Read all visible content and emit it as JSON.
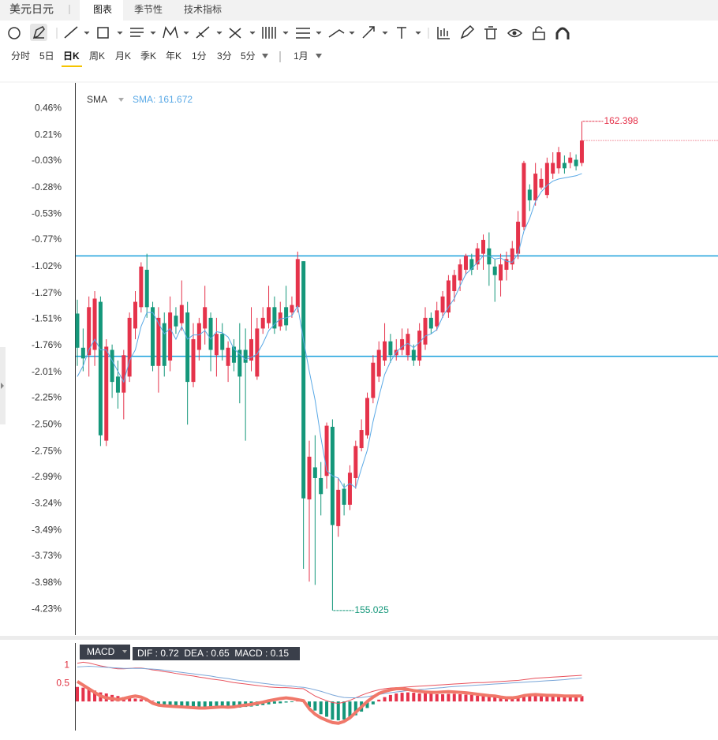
{
  "header": {
    "symbol": "美元日元",
    "tabs": [
      "图表",
      "季节性",
      "技术指标"
    ],
    "active_tab": 0
  },
  "periods": [
    "分时",
    "5日",
    "日K",
    "周K",
    "月K",
    "季K",
    "年K",
    "1分",
    "3分",
    "5分"
  ],
  "active_period": 2,
  "range": "1月",
  "chart_data": [
    {
      "type": "candlestick",
      "indicator": "SMA",
      "indicator_label": "SMA: 161.672",
      "up_color": "#e5334b",
      "down_color": "#14977a",
      "open": [
        -1.46,
        -1.78,
        -1.85,
        -1.8,
        -1.35,
        -2.65,
        -1.8,
        -2.05,
        -2.2,
        -2.05,
        -1.6,
        -1.4,
        -1.05,
        -1.4,
        -1.95,
        -1.55,
        -1.9,
        -1.48,
        -1.55,
        -1.45,
        -2.1,
        -1.8,
        -1.6,
        -1.5,
        -1.85,
        -1.65,
        -1.95,
        -1.77,
        -1.8,
        -1.8,
        -1.9,
        -2.05,
        -1.6,
        -1.55,
        -1.4,
        -1.58,
        -1.4,
        -1.45,
        -1.4,
        -0.97,
        -3.2,
        -2.9,
        -3.0,
        -2.98,
        -2.52,
        -3.45,
        -3.1,
        -3.25,
        -3.0,
        -2.72,
        -2.6,
        -2.25,
        -2.05,
        -1.9,
        -1.72,
        -1.85,
        -1.8,
        -1.85,
        -1.8,
        -1.9,
        -1.75,
        -1.5,
        -1.58,
        -1.45,
        -1.45,
        -1.25,
        -1.15,
        -1.05,
        -0.95,
        -1.0,
        -0.9,
        -0.85,
        -1.02,
        -1.15,
        -1.05,
        -1.0,
        -0.9,
        -0.65,
        -0.3,
        -0.4,
        -0.28,
        -0.35,
        -0.15,
        -0.1,
        -0.05,
        -0.05,
        -0.02,
        -0.05
      ],
      "high": [
        -1.33,
        -1.6,
        -1.3,
        -1.25,
        -1.3,
        -1.7,
        -1.75,
        -1.9,
        -1.8,
        -1.45,
        -1.25,
        -0.98,
        -0.9,
        -1.35,
        -1.4,
        -1.45,
        -1.3,
        -1.4,
        -1.15,
        -1.35,
        -1.55,
        -1.5,
        -1.2,
        -1.45,
        -1.5,
        -1.55,
        -1.72,
        -1.7,
        -1.55,
        -1.6,
        -1.4,
        -1.5,
        -1.4,
        -1.2,
        -1.3,
        -1.35,
        -1.2,
        -1.3,
        -0.88,
        -0.97,
        -2.65,
        -2.6,
        -2.85,
        -2.48,
        -2.45,
        -3.0,
        -3.05,
        -2.88,
        -2.65,
        -2.45,
        -2.2,
        -1.85,
        -1.72,
        -1.55,
        -1.65,
        -1.7,
        -1.6,
        -1.6,
        -1.75,
        -1.55,
        -1.4,
        -1.45,
        -1.35,
        -1.25,
        -1.1,
        -1.05,
        -0.95,
        -0.9,
        -0.9,
        -0.8,
        -0.72,
        -0.7,
        -0.95,
        -0.9,
        -0.88,
        -0.78,
        -0.5,
        -0.03,
        -0.25,
        -0.05,
        -0.1,
        0.0,
        0.05,
        0.1,
        0.02,
        0.05,
        0.03,
        0.34
      ],
      "low": [
        -1.95,
        -2.0,
        -2.05,
        -1.95,
        -2.7,
        -2.7,
        -2.25,
        -2.35,
        -2.45,
        -2.1,
        -1.7,
        -1.45,
        -1.5,
        -2.0,
        -2.2,
        -2.05,
        -2.0,
        -1.65,
        -1.62,
        -2.5,
        -2.15,
        -1.9,
        -1.75,
        -2.0,
        -2.05,
        -1.9,
        -2.1,
        -2.0,
        -2.3,
        -2.65,
        -2.0,
        -2.08,
        -1.65,
        -1.6,
        -1.65,
        -1.62,
        -1.62,
        -1.5,
        -1.45,
        -3.85,
        -3.97,
        -4.0,
        -3.35,
        -3.1,
        -4.24,
        -3.55,
        -3.35,
        -3.3,
        -3.1,
        -2.75,
        -2.63,
        -2.3,
        -2.1,
        -1.95,
        -1.92,
        -1.9,
        -1.85,
        -1.9,
        -1.95,
        -1.95,
        -1.8,
        -1.65,
        -1.62,
        -1.5,
        -1.5,
        -1.35,
        -1.25,
        -1.1,
        -1.1,
        -1.05,
        -1.05,
        -1.2,
        -1.35,
        -1.3,
        -1.15,
        -1.05,
        -0.95,
        -0.68,
        -0.5,
        -0.45,
        -0.3,
        -0.38,
        -0.2,
        -0.15,
        -0.15,
        -0.1,
        -0.12,
        -0.08
      ],
      "close": [
        -1.78,
        -1.88,
        -1.4,
        -1.32,
        -2.6,
        -1.77,
        -2.1,
        -2.2,
        -1.85,
        -1.5,
        -1.35,
        -1.02,
        -1.4,
        -1.95,
        -1.5,
        -1.95,
        -1.45,
        -1.58,
        -1.38,
        -2.1,
        -1.7,
        -1.55,
        -1.4,
        -1.8,
        -1.65,
        -1.8,
        -1.78,
        -1.92,
        -2.05,
        -1.92,
        -1.7,
        -1.6,
        -1.5,
        -1.4,
        -1.6,
        -1.45,
        -1.57,
        -1.38,
        -0.95,
        -3.19,
        -2.8,
        -3.0,
        -3.15,
        -2.51,
        -3.44,
        -3.11,
        -3.25,
        -2.95,
        -2.7,
        -2.55,
        -2.25,
        -1.92,
        -1.8,
        -1.72,
        -1.85,
        -1.8,
        -1.7,
        -1.65,
        -1.9,
        -1.62,
        -1.5,
        -1.6,
        -1.43,
        -1.3,
        -1.15,
        -1.1,
        -1.0,
        -0.92,
        -1.05,
        -0.85,
        -0.77,
        -1.0,
        -1.1,
        -1.0,
        -0.95,
        -0.85,
        -0.6,
        -0.05,
        -0.4,
        -0.15,
        -0.2,
        -0.05,
        -0.05,
        0.05,
        -0.1,
        0.0,
        -0.08,
        0.16
      ],
      "sma": {
        "color": "#5aa9e6",
        "values": [
          -2.05,
          -1.95,
          -1.8,
          -1.7,
          -1.8,
          -1.8,
          -1.9,
          -2.0,
          -2.1,
          -1.9,
          -1.8,
          -1.58,
          -1.45,
          -1.45,
          -1.55,
          -1.65,
          -1.6,
          -1.7,
          -1.58,
          -1.7,
          -1.66,
          -1.66,
          -1.62,
          -1.7,
          -1.63,
          -1.64,
          -1.68,
          -1.79,
          -1.84,
          -1.89,
          -1.87,
          -1.84,
          -1.74,
          -1.62,
          -1.56,
          -1.51,
          -1.5,
          -1.48,
          -1.39,
          -1.71,
          -2.0,
          -2.27,
          -2.62,
          -2.93,
          -2.98,
          -3.0,
          -3.09,
          -3.05,
          -3.09,
          -2.91,
          -2.74,
          -2.47,
          -2.24,
          -2.03,
          -1.91,
          -1.82,
          -1.77,
          -1.74,
          -1.78,
          -1.73,
          -1.67,
          -1.65,
          -1.61,
          -1.49,
          -1.4,
          -1.32,
          -1.2,
          -1.09,
          -1.04,
          -0.98,
          -0.92,
          -0.92,
          -0.95,
          -0.94,
          -0.97,
          -0.98,
          -0.9,
          -0.69,
          -0.57,
          -0.41,
          -0.32,
          -0.26,
          -0.22,
          -0.2,
          -0.19,
          -0.18,
          -0.17,
          -0.15
        ]
      },
      "hlines": {
        "color": "#1aa0dc",
        "values": [
          -0.92,
          -1.86
        ]
      },
      "max_label": "162.398",
      "min_label": "155.025",
      "ylim": [
        -4.47,
        0.7
      ],
      "yticks": [
        {
          "value": 0.46,
          "label": "0.46%"
        },
        {
          "value": 0.21,
          "label": "0.21%"
        },
        {
          "value": -0.03,
          "label": "-0.03%"
        },
        {
          "value": -0.28,
          "label": "-0.28%"
        },
        {
          "value": -0.53,
          "label": "-0.53%"
        },
        {
          "value": -0.77,
          "label": "-0.77%"
        },
        {
          "value": -1.02,
          "label": "-1.02%"
        },
        {
          "value": -1.27,
          "label": "-1.27%"
        },
        {
          "value": -1.51,
          "label": "-1.51%"
        },
        {
          "value": -1.76,
          "label": "-1.76%"
        },
        {
          "value": -2.01,
          "label": "-2.01%"
        },
        {
          "value": -2.25,
          "label": "-2.25%"
        },
        {
          "value": -2.5,
          "label": "-2.50%"
        },
        {
          "value": -2.75,
          "label": "-2.75%"
        },
        {
          "value": -2.99,
          "label": "-2.99%"
        },
        {
          "value": -3.24,
          "label": "-3.24%"
        },
        {
          "value": -3.49,
          "label": "-3.49%"
        },
        {
          "value": -3.73,
          "label": "-3.73%"
        },
        {
          "value": -3.98,
          "label": "-3.98%"
        },
        {
          "value": -4.23,
          "label": "-4.23%"
        }
      ]
    },
    {
      "type": "macd",
      "indicator": "MACD",
      "legend": "DIF : 0.72  DEA : 0.65  MACD : 0.15",
      "up_color": "#e5334b",
      "down_color": "#14977a",
      "histogram": [
        0.4,
        0.38,
        0.36,
        0.3,
        0.25,
        0.22,
        0.18,
        0.15,
        0.12,
        0.1,
        0.08,
        0.06,
        0.04,
        0.02,
        -0.12,
        -0.13,
        -0.14,
        -0.15,
        -0.15,
        -0.16,
        -0.17,
        -0.18,
        -0.18,
        -0.17,
        -0.16,
        -0.17,
        -0.18,
        -0.18,
        -0.17,
        -0.15,
        -0.14,
        -0.12,
        -0.1,
        -0.08,
        -0.06,
        -0.05,
        -0.03,
        -0.02,
        0.05,
        0.03,
        -0.15,
        -0.25,
        -0.35,
        -0.42,
        -0.5,
        -0.52,
        -0.5,
        -0.45,
        -0.38,
        -0.28,
        -0.18,
        -0.08,
        0.05,
        0.12,
        0.18,
        0.22,
        0.24,
        0.25,
        0.24,
        0.22,
        0.22,
        0.21,
        0.2,
        0.2,
        0.21,
        0.21,
        0.2,
        0.19,
        0.18,
        0.16,
        0.15,
        0.13,
        0.12,
        0.1,
        0.09,
        0.1,
        0.12,
        0.15,
        0.16,
        0.17,
        0.16,
        0.15,
        0.16,
        0.15,
        0.14,
        0.15,
        0.15,
        0.15
      ],
      "series": [
        {
          "color": "#e8505b",
          "width": 1,
          "values": [
            1.05,
            1.08,
            1.06,
            1.02,
            0.98,
            0.95,
            0.92,
            0.9,
            0.9,
            0.91,
            0.92,
            0.92,
            0.9,
            0.87,
            0.85,
            0.82,
            0.8,
            0.77,
            0.75,
            0.72,
            0.7,
            0.67,
            0.65,
            0.62,
            0.6,
            0.58,
            0.55,
            0.52,
            0.5,
            0.48,
            0.46,
            0.44,
            0.42,
            0.4,
            0.39,
            0.38,
            0.38,
            0.37,
            0.36,
            0.35,
            0.25,
            0.15,
            0.08,
            0.02,
            -0.03,
            -0.05,
            -0.02,
            0.03,
            0.1,
            0.17,
            0.23,
            0.28,
            0.32,
            0.35,
            0.37,
            0.38,
            0.39,
            0.4,
            0.41,
            0.42,
            0.43,
            0.44,
            0.45,
            0.46,
            0.47,
            0.48,
            0.49,
            0.5,
            0.51,
            0.52,
            0.52,
            0.53,
            0.54,
            0.55,
            0.56,
            0.57,
            0.58,
            0.6,
            0.62,
            0.64,
            0.65,
            0.66,
            0.67,
            0.68,
            0.69,
            0.7,
            0.71,
            0.72
          ]
        },
        {
          "color": "#7aa6d8",
          "width": 1,
          "values": [
            0.95,
            0.96,
            0.97,
            0.96,
            0.95,
            0.94,
            0.93,
            0.92,
            0.91,
            0.91,
            0.91,
            0.91,
            0.9,
            0.89,
            0.88,
            0.86,
            0.84,
            0.82,
            0.8,
            0.78,
            0.76,
            0.74,
            0.72,
            0.7,
            0.67,
            0.65,
            0.63,
            0.6,
            0.58,
            0.56,
            0.54,
            0.52,
            0.5,
            0.48,
            0.46,
            0.45,
            0.43,
            0.42,
            0.4,
            0.39,
            0.36,
            0.32,
            0.28,
            0.23,
            0.18,
            0.14,
            0.11,
            0.1,
            0.1,
            0.11,
            0.13,
            0.16,
            0.19,
            0.22,
            0.24,
            0.26,
            0.28,
            0.3,
            0.31,
            0.33,
            0.34,
            0.36,
            0.37,
            0.38,
            0.4,
            0.41,
            0.42,
            0.43,
            0.44,
            0.45,
            0.46,
            0.47,
            0.48,
            0.49,
            0.5,
            0.51,
            0.52,
            0.53,
            0.54,
            0.55,
            0.56,
            0.57,
            0.58,
            0.59,
            0.6,
            0.62,
            0.63,
            0.65
          ]
        },
        {
          "color": "#f0786a",
          "width": 4,
          "values": [
            0.55,
            0.45,
            0.35,
            0.25,
            0.15,
            0.1,
            0.08,
            0.05,
            0.08,
            0.12,
            0.15,
            0.12,
            0.05,
            -0.05,
            -0.1,
            -0.12,
            -0.13,
            -0.14,
            -0.15,
            -0.16,
            -0.17,
            -0.18,
            -0.18,
            -0.17,
            -0.16,
            -0.15,
            -0.16,
            -0.15,
            -0.12,
            -0.1,
            -0.08,
            -0.05,
            -0.02,
            0.02,
            0.05,
            0.08,
            0.1,
            0.08,
            0.05,
            0.02,
            -0.2,
            -0.35,
            -0.45,
            -0.52,
            -0.58,
            -0.6,
            -0.55,
            -0.45,
            -0.3,
            -0.15,
            0.0,
            0.12,
            0.22,
            0.28,
            0.32,
            0.35,
            0.35,
            0.33,
            0.3,
            0.28,
            0.26,
            0.25,
            0.25,
            0.26,
            0.27,
            0.26,
            0.25,
            0.24,
            0.22,
            0.2,
            0.18,
            0.16,
            0.15,
            0.12,
            0.1,
            0.1,
            0.12,
            0.16,
            0.18,
            0.19,
            0.18,
            0.17,
            0.17,
            0.16,
            0.15,
            0.15,
            0.15,
            0.15
          ]
        }
      ],
      "ylim": [
        -0.8,
        1.61
      ],
      "yticks": [
        1,
        0.5
      ],
      "tick_color": "#e0303f"
    }
  ]
}
